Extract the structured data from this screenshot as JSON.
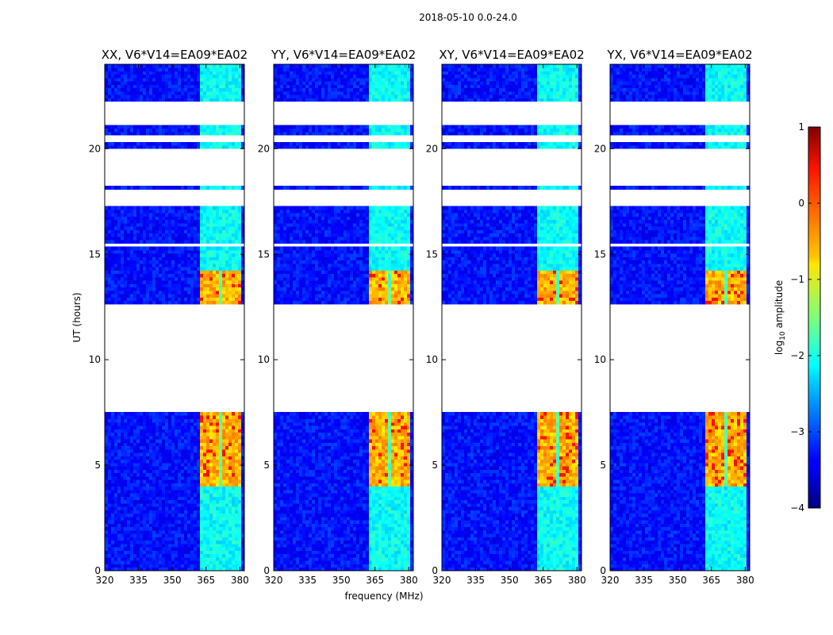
{
  "chart_data": {
    "type": "heatmap",
    "suptitle": "2018-05-10 0.0-24.0",
    "xlabel": "frequency (MHz)",
    "ylabel": "UT (hours)",
    "x_range": [
      320,
      382
    ],
    "y_range": [
      0,
      24
    ],
    "x_ticks": [
      "320",
      "335",
      "350",
      "365",
      "380"
    ],
    "x_tick_values": [
      320,
      335,
      350,
      365,
      380
    ],
    "y_ticks": [
      "0",
      "5",
      "10",
      "15",
      "20"
    ],
    "y_tick_values": [
      0,
      5,
      10,
      15,
      20
    ],
    "panels": [
      {
        "title": "XX, V6*V14=EA09*EA02"
      },
      {
        "title": "YY, V6*V14=EA09*EA02"
      },
      {
        "title": "XY, V6*V14=EA09*EA02"
      },
      {
        "title": "YX, V6*V14=EA09*EA02"
      }
    ],
    "colorbar": {
      "label": "log10 amplitude",
      "label_main": "log",
      "label_sub": "10",
      "label_rest": " amplitude",
      "range": [
        -4,
        1
      ],
      "ticks": [
        "1",
        "0",
        "−1",
        "−2",
        "−3",
        "−4"
      ],
      "tick_values": [
        1,
        0,
        -1,
        -2,
        -3,
        -4
      ],
      "colormap": "jet"
    },
    "data_gaps_ut_hours": [
      [
        7.5,
        12.7
      ],
      [
        17.3,
        18.0
      ],
      [
        18.2,
        20.0
      ],
      [
        20.3,
        20.6
      ],
      [
        21.2,
        22.2
      ],
      [
        15.3,
        15.6
      ]
    ],
    "rfi_band_mhz": [
      362,
      381
    ],
    "rfi_strong_ut_hours": [
      [
        4.0,
        7.5
      ],
      [
        12.7,
        14.3
      ]
    ],
    "rfi_channels_mhz": [
      364,
      369,
      374,
      379
    ],
    "levels": {
      "background": -3.3,
      "weak_band": -2.1,
      "medium_band": -1.7,
      "strong_band": -0.5,
      "peak": 0.3
    }
  }
}
